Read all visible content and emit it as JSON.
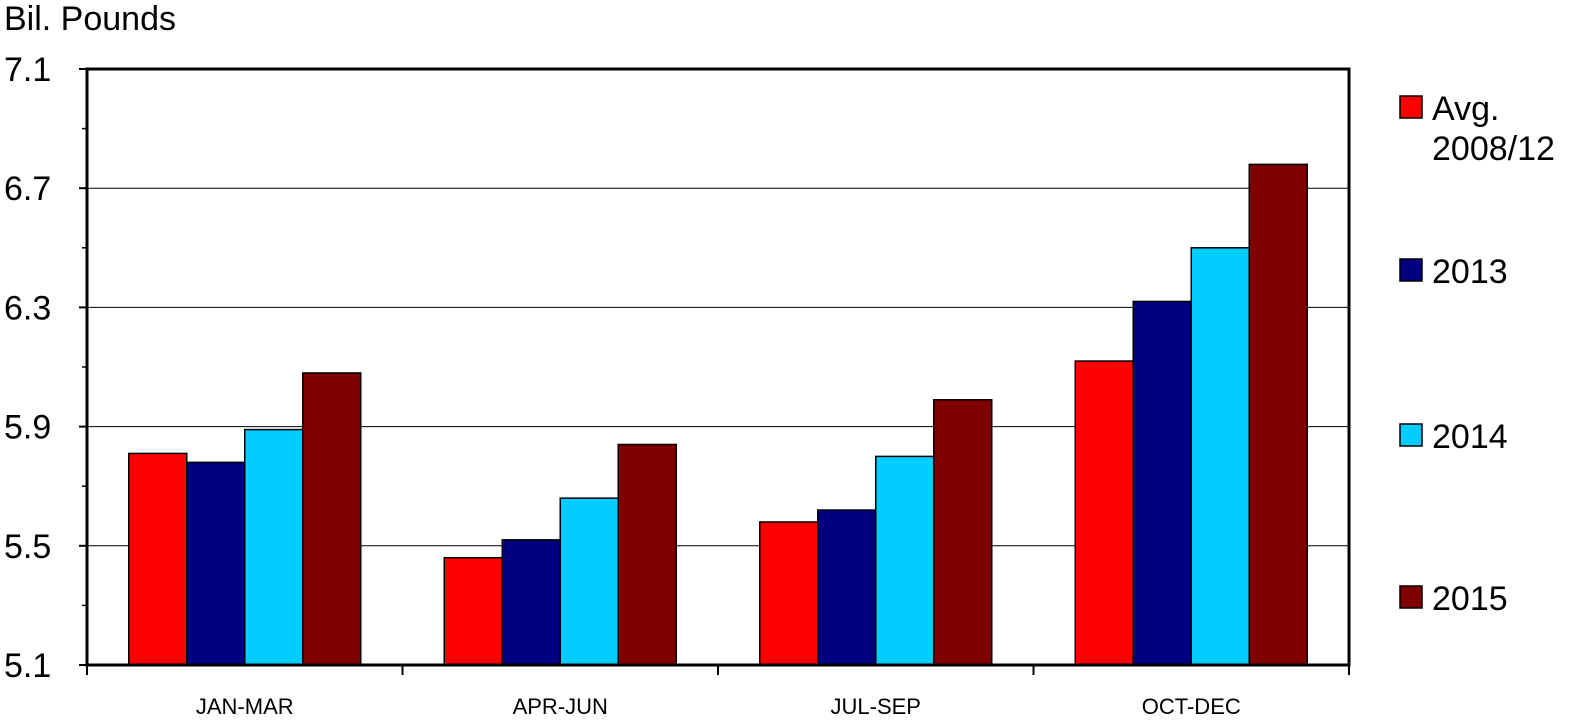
{
  "chart_data": {
    "type": "bar",
    "title": "",
    "ylabel": "Bil. Pounds",
    "xlabel": "",
    "ylim": [
      5.1,
      7.1
    ],
    "yticks": [
      "5.1",
      "5.5",
      "5.9",
      "6.3",
      "6.7",
      "7.1"
    ],
    "grid": true,
    "legend_position": "right",
    "categories": [
      "JAN-MAR",
      "APR-JUN",
      "JUL-SEP",
      "OCT-DEC"
    ],
    "series": [
      {
        "name": "Avg. 2008/12",
        "legend_lines": [
          "Avg.",
          "2008/12"
        ],
        "color": "#ff0000",
        "values": [
          5.81,
          5.46,
          5.58,
          6.12
        ]
      },
      {
        "name": "2013",
        "legend_lines": [
          "2013"
        ],
        "color": "#000080",
        "values": [
          5.78,
          5.52,
          5.62,
          6.32
        ]
      },
      {
        "name": "2014",
        "legend_lines": [
          "2014"
        ],
        "color": "#00ccff",
        "values": [
          5.89,
          5.66,
          5.8,
          6.5
        ]
      },
      {
        "name": "2015",
        "legend_lines": [
          "2015"
        ],
        "color": "#800000",
        "values": [
          6.08,
          5.84,
          5.99,
          6.78
        ]
      }
    ]
  }
}
